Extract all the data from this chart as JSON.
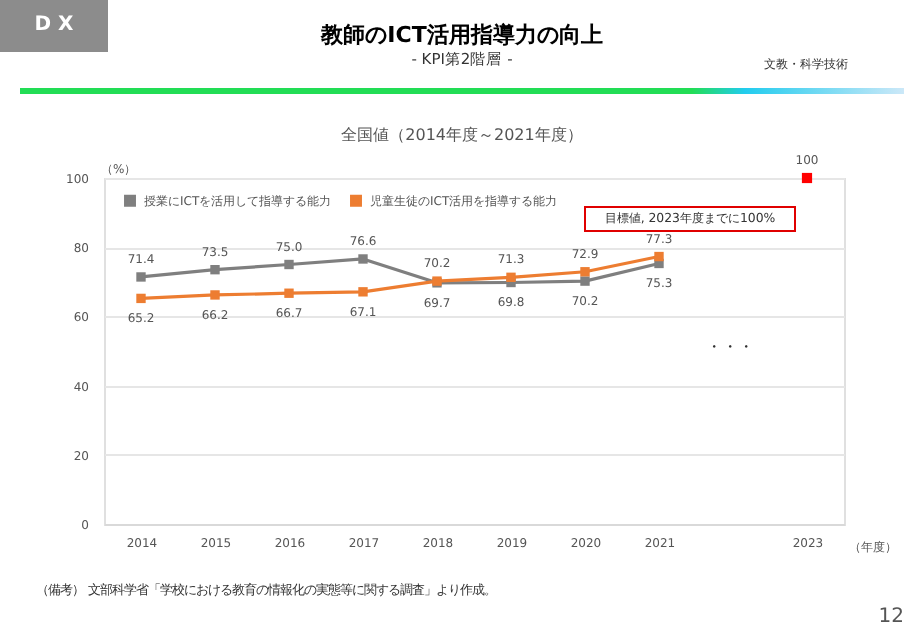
{
  "chart_data": {
    "type": "line",
    "title": "教師のICT活用指導力の向上",
    "subtitle": "- KPI第2階層 -",
    "xlabel": "（年度）",
    "ylabel": "（%）",
    "categories": [
      "2014",
      "2015",
      "2016",
      "2017",
      "2018",
      "2019",
      "2020",
      "2021",
      null,
      "2023"
    ],
    "series": [
      {
        "name": "授業にICTを活用して指導する能力",
        "color": "#7f7f7f",
        "values": [
          71.4,
          73.5,
          75.0,
          76.6,
          69.7,
          69.8,
          70.2,
          75.3,
          null,
          null
        ],
        "value_labels": [
          "71.4",
          "73.5",
          "75.0",
          "76.6",
          "69.7",
          "69.8",
          "70.2",
          "75.3",
          null,
          null
        ]
      },
      {
        "name": "児童生徒のICT活用を指導する能力",
        "color": "#ed7d31",
        "values": [
          65.2,
          66.2,
          66.7,
          67.1,
          70.2,
          71.3,
          72.9,
          77.3,
          null,
          null
        ],
        "value_labels": [
          "65.2",
          "66.2",
          "66.7",
          "67.1",
          "70.2",
          "71.3",
          "72.9",
          "77.3",
          null,
          null
        ]
      },
      {
        "type": "scatter",
        "color": "#ff0000",
        "values": [
          null,
          null,
          null,
          null,
          null,
          null,
          null,
          null,
          null,
          100
        ],
        "value_labels": [
          null,
          null,
          null,
          null,
          null,
          null,
          null,
          null,
          null,
          "100"
        ]
      }
    ],
    "ylim": [
      0,
      100
    ],
    "yticks": [
      0,
      20,
      40,
      60,
      80,
      100
    ],
    "grid": "y",
    "legend": "top",
    "marker": "square",
    "line_style": "solid",
    "annotations": [
      "D X",
      "文教・科学技術",
      "全国値（2014年度～2021年度）",
      "目標値, 2023年度までに100%",
      "・・・",
      "（備考） 文部科学省「学校における教育の情報化の実態等に関する調査」より作成。",
      "12"
    ]
  }
}
